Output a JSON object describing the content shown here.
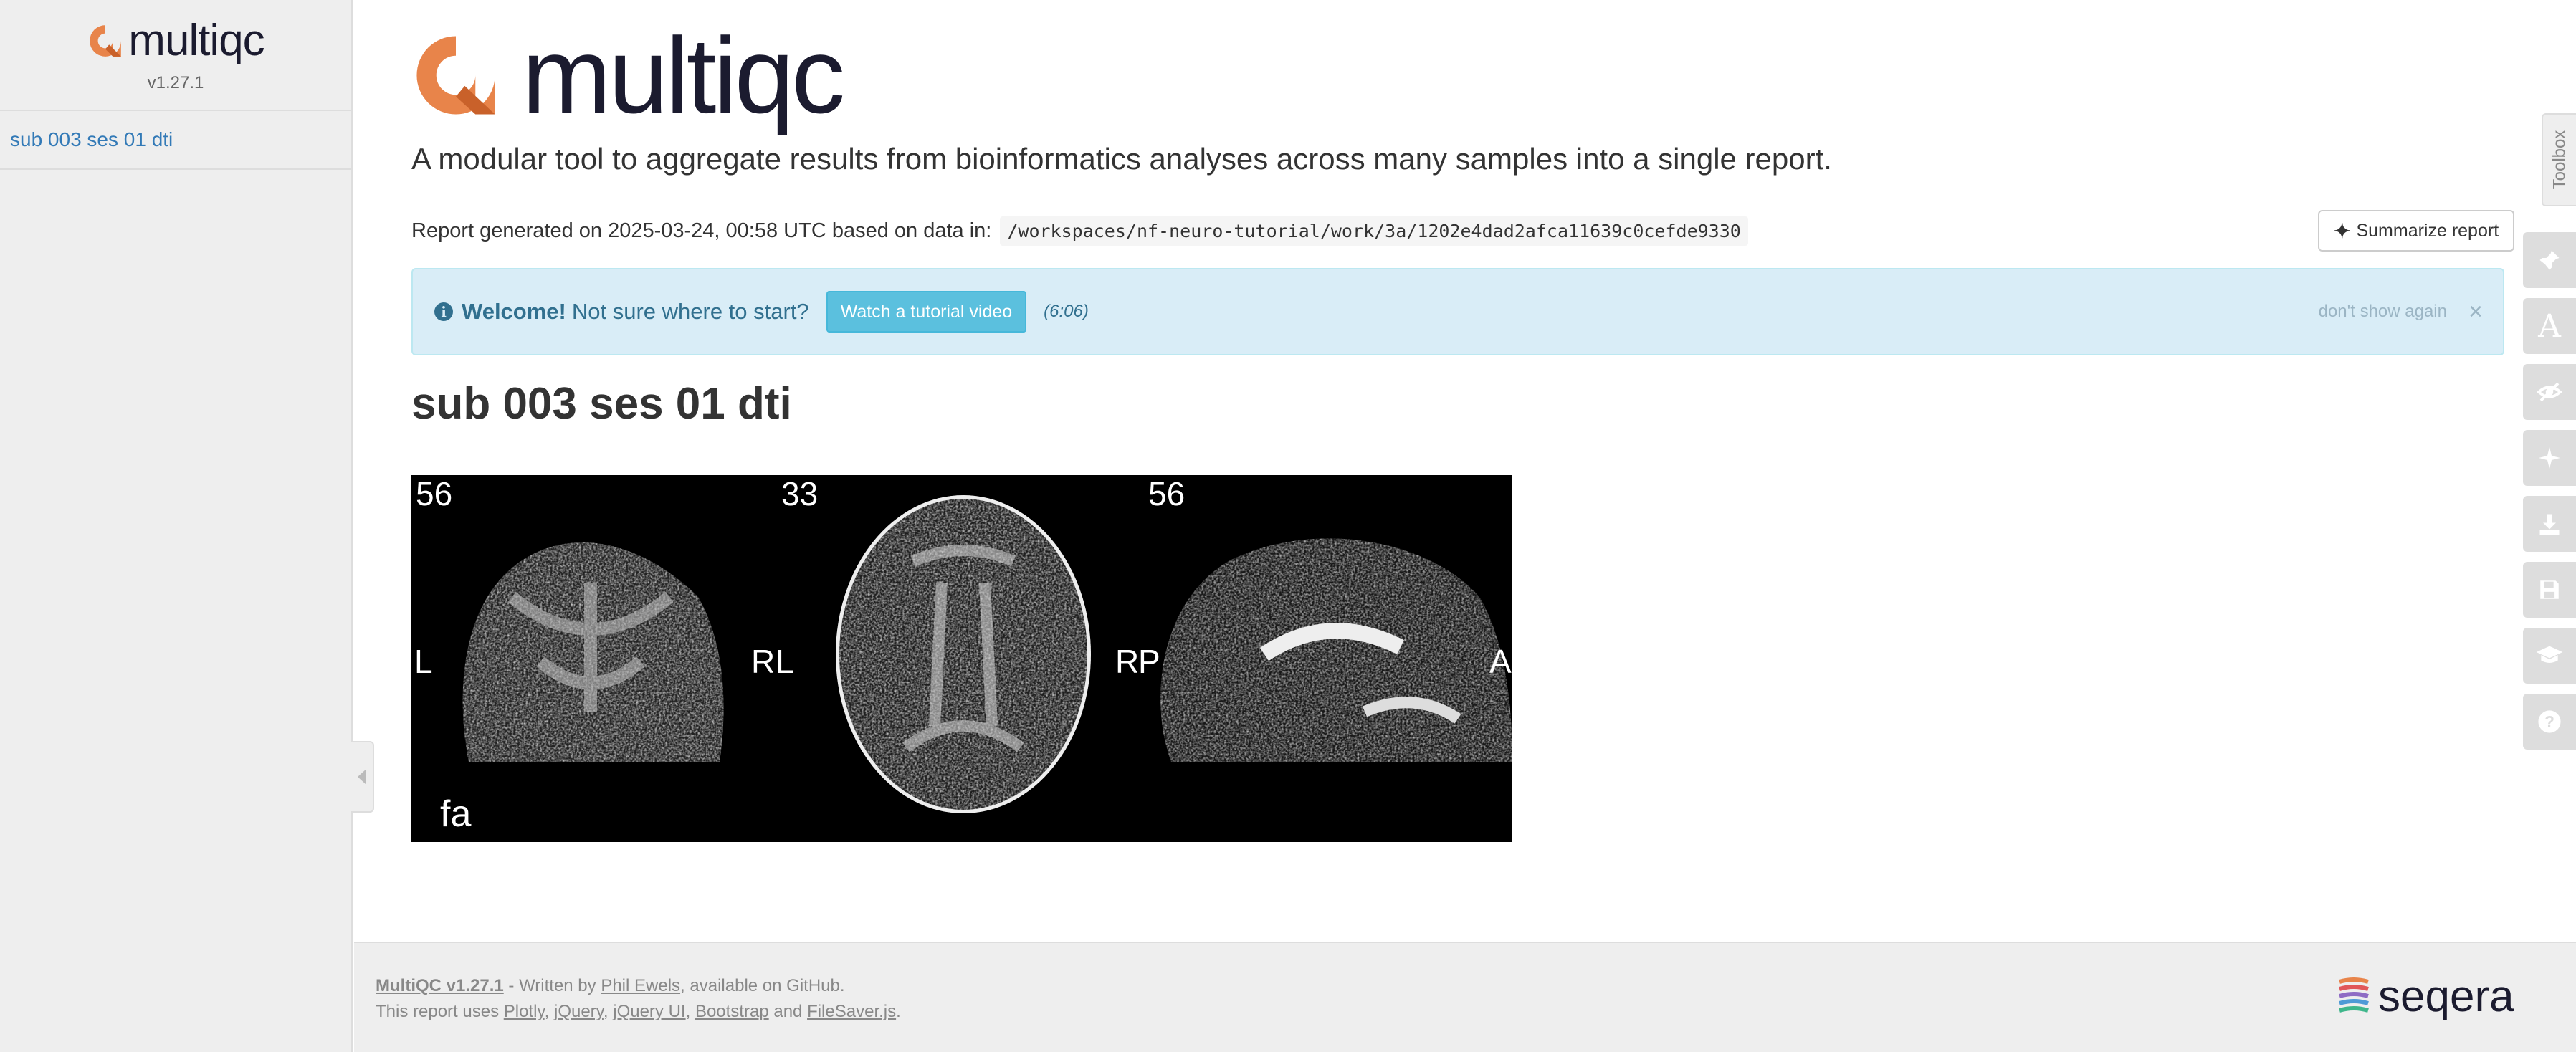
{
  "sidebar": {
    "logo_text": "multiqc",
    "version": "v1.27.1",
    "nav_items": [
      {
        "label": "sub 003 ses 01 dti"
      }
    ]
  },
  "header": {
    "logo_text": "multiqc",
    "tagline": "A modular tool to aggregate results from bioinformatics analyses across many samples into a single report.",
    "generated_prefix": "Report generated on 2025-03-24, 00:58 UTC based on data in:",
    "data_path": "/workspaces/nf-neuro-tutorial/work/3a/1202e4dad2afca11639c0cefde9330",
    "summarize_label": "Summarize report"
  },
  "welcome": {
    "bold": "Welcome!",
    "text": "Not sure where to start?",
    "button_label": "Watch a tutorial video",
    "duration": "(6:06)",
    "dont_show": "don't show again",
    "close": "×"
  },
  "section": {
    "title": "sub 003 ses 01 dti",
    "image_labels": {
      "slice1": "56",
      "slice2": "33",
      "slice3": "56",
      "left1": "L",
      "rl1": "R",
      "rl2": "L",
      "rp1": "R",
      "rp2": "P",
      "anterior": "A",
      "metric": "fa"
    }
  },
  "toolbox": {
    "tab_label": "Toolbox",
    "icons": [
      "pin-icon",
      "font-icon",
      "eye-slash-icon",
      "sparkle-icon",
      "download-icon",
      "save-icon",
      "graduation-cap-icon",
      "help-icon"
    ]
  },
  "footer": {
    "version_link": "MultiQC v1.27.1",
    "written_by": " - Written by ",
    "author": "Phil Ewels",
    "available_on": ", available on ",
    "github": "GitHub",
    "period": ".",
    "uses_prefix": "This report uses ",
    "plotly": "Plotly",
    "jquery": "jQuery",
    "jqueryui": "jQuery UI",
    "bootstrap": "Bootstrap",
    "and": " and ",
    "filesaver": "FileSaver.js",
    "comma": ", ",
    "seqera_logo": "seqera"
  },
  "colors": {
    "brand_orange": "#e8844a",
    "brand_dark": "#1b1b2f",
    "link_blue": "#337ab7",
    "info_bg": "#d9edf7",
    "info_button": "#5bc0de"
  }
}
